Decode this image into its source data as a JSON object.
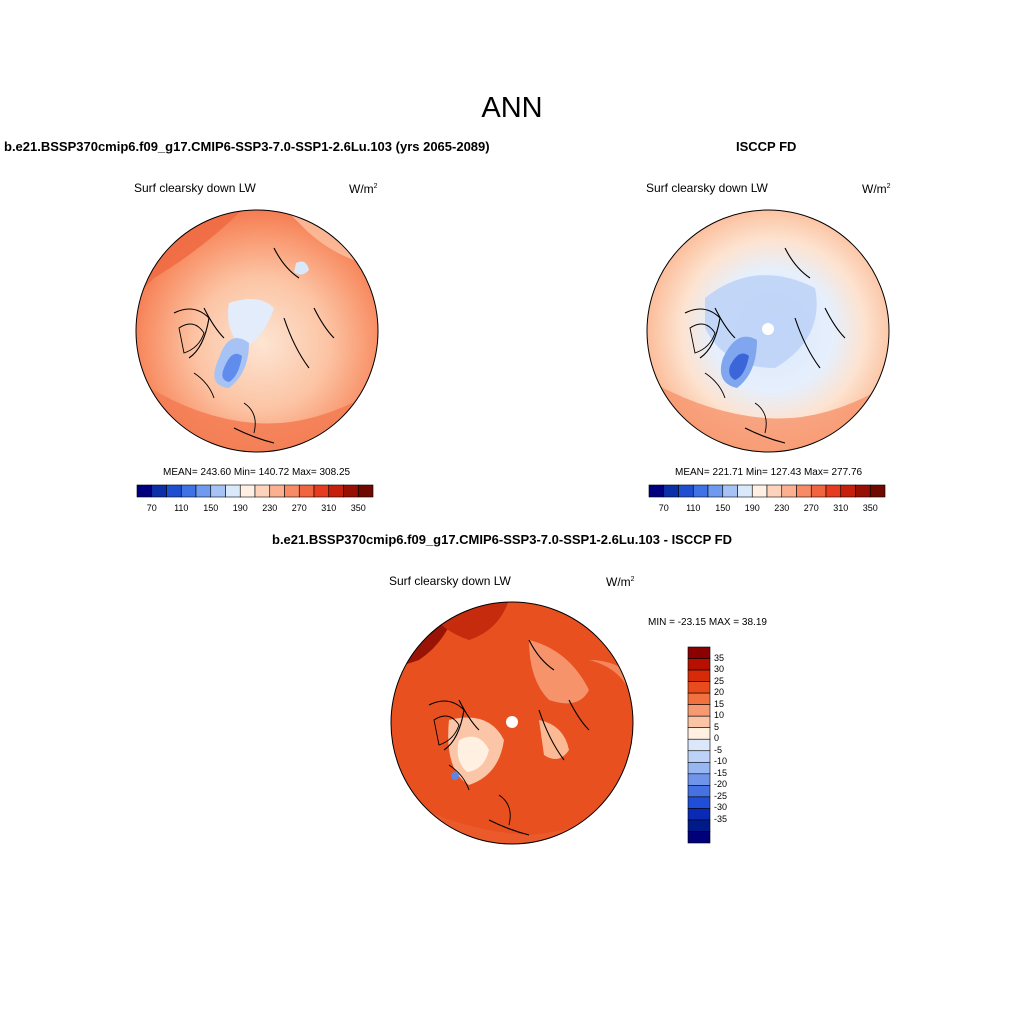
{
  "main_title": "ANN",
  "panels": [
    {
      "title": "b.e21.BSSP370cmip6.f09_g17.CMIP6-SSP3-7.0-SSP1-2.6Lu.103 (yrs 2065-2089)",
      "variable": "Surf clearsky down LW",
      "units_base": "W/m",
      "units_exp": "2",
      "stats_text": "MEAN= 243.60  Min= 140.72  Max= 308.25"
    },
    {
      "title": "ISCCP FD",
      "variable": "Surf clearsky down LW",
      "units_base": "W/m",
      "units_exp": "2",
      "stats_text": "MEAN= 221.71  Min= 127.43  Max= 277.76"
    },
    {
      "title": "b.e21.BSSP370cmip6.f09_g17.CMIP6-SSP3-7.0-SSP1-2.6Lu.103 - ISCCP FD",
      "variable": "Surf clearsky down LW",
      "units_base": "W/m",
      "units_exp": "2",
      "stats_text": "MIN = -23.15 MAX =  38.19"
    }
  ],
  "abs_colorbar": {
    "colors": [
      "#00007f",
      "#0a2fa8",
      "#1f4fd0",
      "#3f72e6",
      "#6f9af0",
      "#a7c3f5",
      "#d9e8fb",
      "#fff0e3",
      "#fdd4bb",
      "#fcb08f",
      "#f98a66",
      "#f26340",
      "#e63b1e",
      "#c6200c",
      "#961004",
      "#6e0800"
    ],
    "tick_labels": [
      "70",
      "110",
      "150",
      "190",
      "230",
      "270",
      "310",
      "350"
    ]
  },
  "diff_colorbar": {
    "colors": [
      "#8b0000",
      "#b71000",
      "#d62a08",
      "#e84b1c",
      "#f2723f",
      "#f79a72",
      "#fbc4a5",
      "#fff0e2",
      "#dbe8fb",
      "#bcd2f6",
      "#98b6f1",
      "#6f94ea",
      "#4571e2",
      "#1f4ed7",
      "#0a2ab6",
      "#001a8a",
      "#00007a"
    ],
    "tick_labels": [
      "35",
      "30",
      "25",
      "20",
      "15",
      "10",
      "5",
      "0",
      "-5",
      "-10",
      "-15",
      "-20",
      "-25",
      "-30",
      "-35"
    ]
  }
}
